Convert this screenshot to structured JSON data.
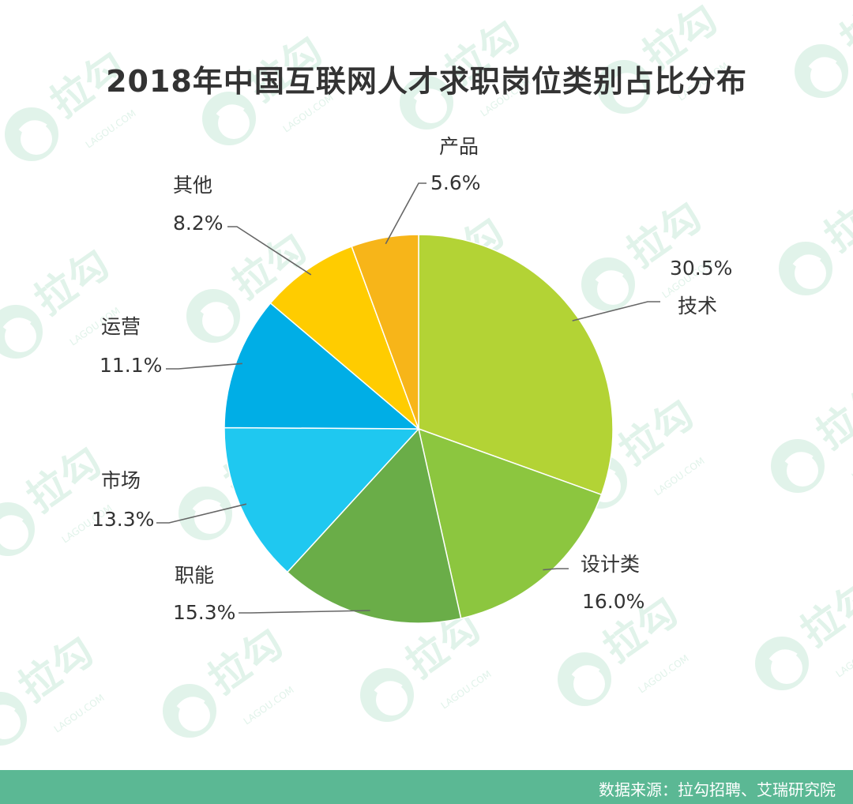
{
  "header": {
    "title": "2018年中国互联网人才求职岗位类别占比分布"
  },
  "footer": {
    "source": "数据来源：拉勾招聘、艾瑞研究院",
    "background_color": "#5bb894"
  },
  "watermark": {
    "text": "拉勾",
    "subtext": "LAGOU.COM",
    "icon": "lagou-logo-icon",
    "color": "#d7efe3"
  },
  "chart_data": {
    "type": "pie",
    "title": "2018年中国互联网人才求职岗位类别占比分布",
    "unit": "%",
    "slices": [
      {
        "name": "技术",
        "value": 30.5,
        "value_label": "30.5%",
        "color": "#b3d335"
      },
      {
        "name": "设计类",
        "value": 16.0,
        "value_label": "16.0%",
        "color": "#8cc63f"
      },
      {
        "name": "职能",
        "value": 15.3,
        "value_label": "15.3%",
        "color": "#6aad48"
      },
      {
        "name": "市场",
        "value": 13.3,
        "value_label": "13.3%",
        "color": "#1fc8f0"
      },
      {
        "name": "运营",
        "value": 11.1,
        "value_label": "11.1%",
        "color": "#00aee6"
      },
      {
        "name": "其他",
        "value": 8.2,
        "value_label": "8.2%",
        "color": "#ffcc00"
      },
      {
        "name": "产品",
        "value": 5.6,
        "value_label": "5.6%",
        "color": "#f7b519"
      }
    ]
  }
}
